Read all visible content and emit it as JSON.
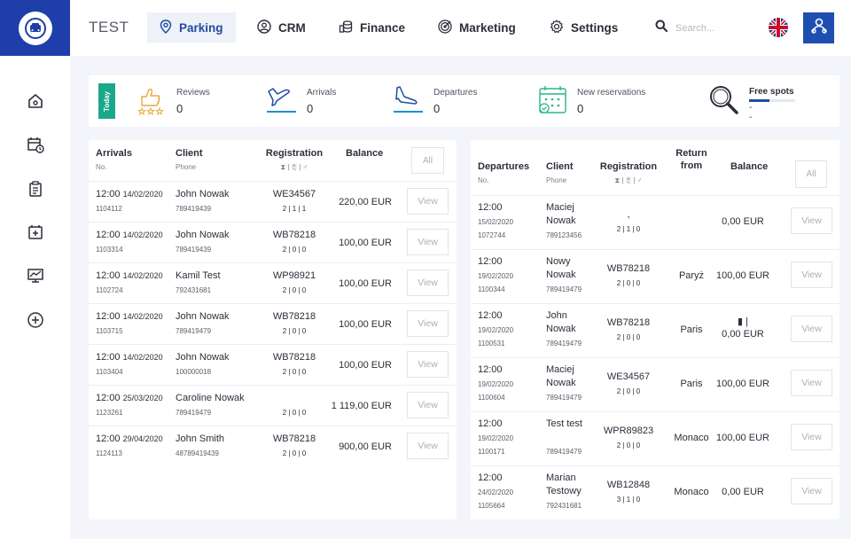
{
  "brand": "TEST",
  "nav": [
    {
      "label": "Parking",
      "icon": "location-pin-icon"
    },
    {
      "label": "CRM",
      "icon": "user-circle-icon"
    },
    {
      "label": "Finance",
      "icon": "coins-icon"
    },
    {
      "label": "Marketing",
      "icon": "target-icon"
    },
    {
      "label": "Settings",
      "icon": "gear-icon"
    }
  ],
  "search": {
    "placeholder": "Search..."
  },
  "sidebar_icons": [
    "home-icon",
    "calendar-clock-icon",
    "clipboard-icon",
    "calendar-plus-icon",
    "chart-monitor-icon",
    "plus-circle-icon"
  ],
  "stats": {
    "today": "Today",
    "reviews": {
      "label": "Reviews",
      "value": "0"
    },
    "arrivals": {
      "label": "Arrivals",
      "value": "0"
    },
    "departures": {
      "label": "Departures",
      "value": "0"
    },
    "new_reservations": {
      "label": "New reservations",
      "value": "0"
    },
    "free_spots": {
      "label": "Free spots",
      "value": "--"
    }
  },
  "arrivals_table": {
    "headers": {
      "col1": "Arrivals",
      "col1_sub": "No.",
      "col2": "Client",
      "col2_sub": "Phone",
      "col3": "Registration",
      "col3_sub": "⧗ | ☃ | ♂",
      "col4": "Balance",
      "all": "All"
    },
    "rows": [
      {
        "time": "12:00",
        "date": "14/02/2020",
        "no": "1104112",
        "client": "John Nowak",
        "phone": "789419439",
        "reg": "WE34567",
        "counts": "2 | 1 | 1",
        "balance": "220,00 EUR",
        "action": "View"
      },
      {
        "time": "12:00",
        "date": "14/02/2020",
        "no": "1103314",
        "client": "John Nowak",
        "phone": "789419439",
        "reg": "WB78218",
        "counts": "2 | 0 | 0",
        "balance": "100,00 EUR",
        "action": "View"
      },
      {
        "time": "12:00",
        "date": "14/02/2020",
        "no": "1102724",
        "client": "Kamil Test",
        "phone": "792431681",
        "reg": "WP98921",
        "counts": "2 | 0 | 0",
        "balance": "100,00 EUR",
        "action": "View"
      },
      {
        "time": "12:00",
        "date": "14/02/2020",
        "no": "1103715",
        "client": "John Nowak",
        "phone": "789419479",
        "reg": "WB78218",
        "counts": "2 | 0 | 0",
        "balance": "100,00 EUR",
        "action": "View"
      },
      {
        "time": "12:00",
        "date": "14/02/2020",
        "no": "1103404",
        "client": "John Nowak",
        "phone": "100000018",
        "reg": "WB78218",
        "counts": "2 | 0 | 0",
        "balance": "100,00 EUR",
        "action": "View"
      },
      {
        "time": "12:00",
        "date": "25/03/2020",
        "no": "1123261",
        "client": "Caroline Nowak",
        "phone": "789419479",
        "reg": "",
        "counts": "2 | 0 | 0",
        "balance": "1 119,00 EUR",
        "action": "View"
      },
      {
        "time": "12:00",
        "date": "29/04/2020",
        "no": "1124113",
        "client": "John Smith",
        "phone": "48789419439",
        "reg": "WB78218",
        "counts": "2 | 0 | 0",
        "balance": "900,00 EUR",
        "action": "View"
      }
    ]
  },
  "departures_table": {
    "headers": {
      "col1": "Departures",
      "col1_sub": "No.",
      "col2": "Client",
      "col2_sub": "Phone",
      "col3": "Registration",
      "col3_sub": "⧗ | ☃ | ♂",
      "col4a": "Return",
      "col4b": "from",
      "col5": "Balance",
      "all": "All"
    },
    "rows": [
      {
        "time": "12:00",
        "date": "15/02/2020",
        "no": "1072744",
        "client1": "Maciej",
        "client2": "Nowak",
        "phone": "789123456",
        "reg": ",",
        "counts": "2 | 1 | 0",
        "from": "",
        "balance": "0,00 EUR",
        "extra": "",
        "action": "View"
      },
      {
        "time": "12:00",
        "date": "19/02/2020",
        "no": "1100344",
        "client1": "Nowy",
        "client2": "Nowak",
        "phone": "789419479",
        "reg": "WB78218",
        "counts": "2 | 0 | 0",
        "from": "Paryż",
        "balance": "100,00 EUR",
        "extra": "",
        "action": "View"
      },
      {
        "time": "12:00",
        "date": "19/02/2020",
        "no": "1100531",
        "client1": "John",
        "client2": "Nowak",
        "phone": "789419479",
        "reg": "WB78218",
        "counts": "2 | 0 | 0",
        "from": "Paris",
        "balance": "0,00 EUR",
        "extra": "▮ |",
        "action": "View"
      },
      {
        "time": "12:00",
        "date": "19/02/2020",
        "no": "1100604",
        "client1": "Maciej",
        "client2": "Nowak",
        "phone": "789419479",
        "reg": "WE34567",
        "counts": "2 | 0 | 0",
        "from": "Paris",
        "balance": "100,00 EUR",
        "extra": "",
        "action": "View"
      },
      {
        "time": "12:00",
        "date": "19/02/2020",
        "no": "1100171",
        "client1": "Test test",
        "client2": "",
        "phone": "789419479",
        "reg": "WPR89823",
        "counts": "2 | 0 | 0",
        "from": "Monaco",
        "balance": "100,00 EUR",
        "extra": "",
        "action": "View"
      },
      {
        "time": "12:00",
        "date": "24/02/2020",
        "no": "1105664",
        "client1": "Marian",
        "client2": "Testowy",
        "phone": "792431681",
        "reg": "WB12848",
        "counts": "3 | 1 | 0",
        "from": "Monaco",
        "balance": "0,00 EUR",
        "extra": "",
        "action": "View"
      }
    ]
  }
}
